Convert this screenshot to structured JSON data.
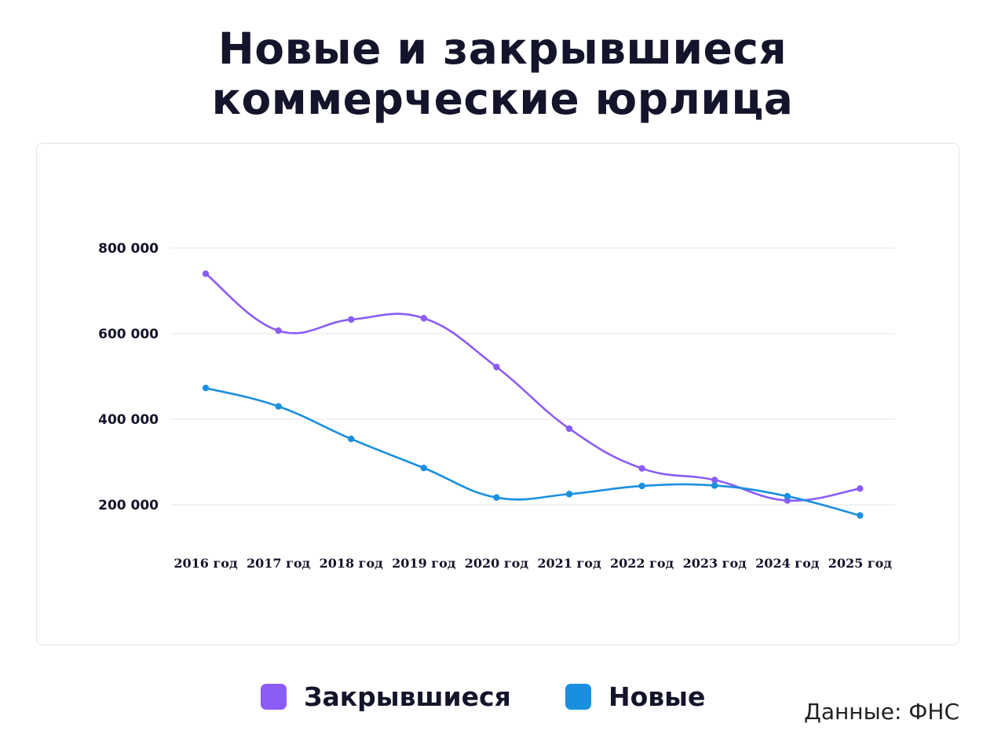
{
  "header": {
    "title_line1": "Новые и закрывшиеся",
    "title_line2": "коммерческие юрлица"
  },
  "source": "Данные: ФНС",
  "chart_data": {
    "type": "line",
    "x": [
      "2016 год",
      "2017 год",
      "2018 год",
      "2019 год",
      "2020 год",
      "2021 год",
      "2022 год",
      "2023 год",
      "2024 год",
      "2025 год"
    ],
    "series": [
      {
        "name": "Закрывшиеся",
        "color": "#8b5cf6",
        "values": [
          740000,
          607000,
          633000,
          636000,
          522000,
          378000,
          285000,
          258000,
          210000,
          238000
        ]
      },
      {
        "name": "Новые",
        "color": "#1a8fe0",
        "values": [
          473000,
          430000,
          354000,
          286000,
          217000,
          225000,
          244000,
          245000,
          220000,
          175000
        ]
      }
    ],
    "yticks": [
      200000,
      400000,
      600000,
      800000
    ],
    "ytick_labels": [
      "200 000",
      "400 000",
      "600 000",
      "800 000"
    ],
    "ylim": [
      200000,
      800000
    ],
    "grid": true,
    "legend_position": "bottom"
  }
}
